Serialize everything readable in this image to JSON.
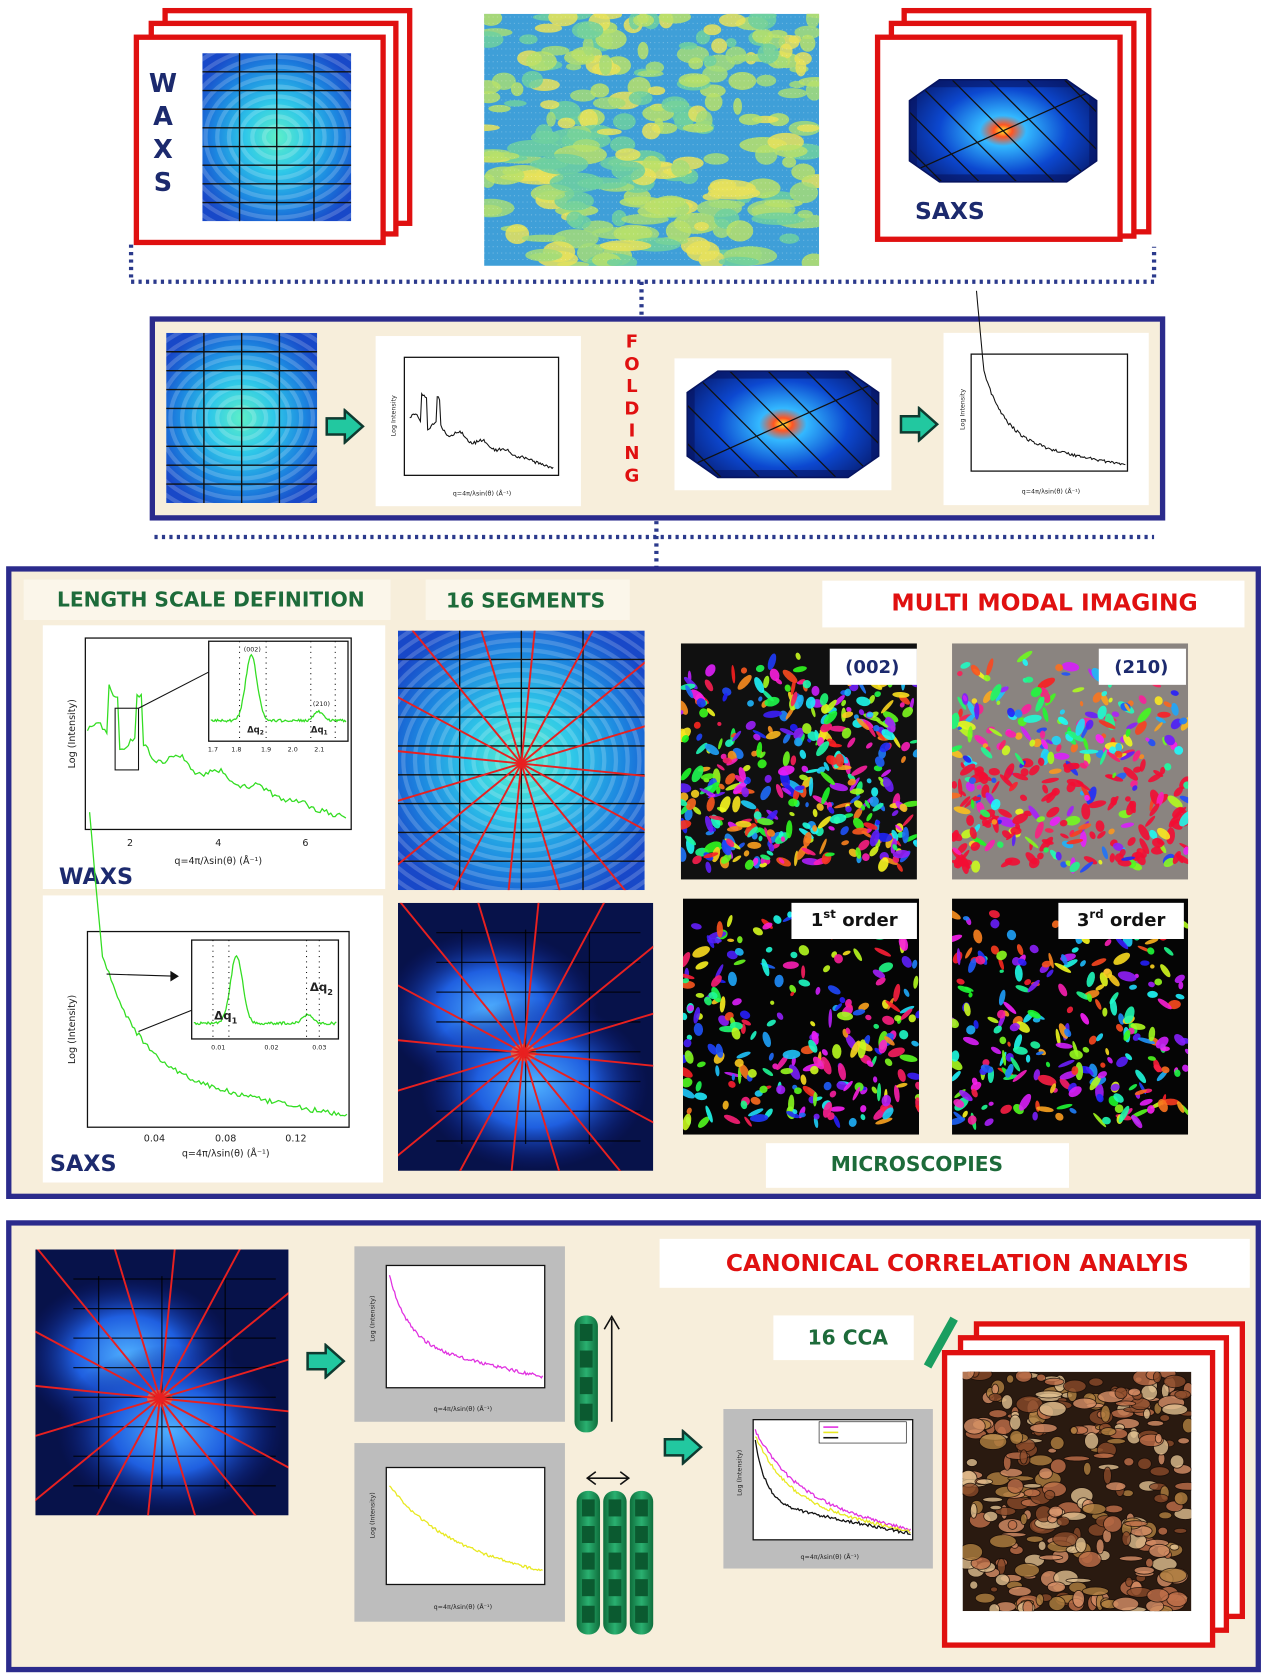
{
  "top": {
    "waxs_label": "WAXS",
    "saxs_label": "SAXS"
  },
  "folding": {
    "label": "FOLDING",
    "plot_ylabel": "Log Intensity",
    "plot_xlabel": "q=4π/λsin(θ) (Å⁻¹)"
  },
  "analysis": {
    "length_scale_title": "LENGTH SCALE DEFINITION",
    "segments_title": "16 SEGMENTS",
    "multimodal_title": "MULTI MODAL IMAGING",
    "waxs_plot": {
      "label": "WAXS",
      "ylabel": "Log (Intensity)",
      "xlabel": "q=4π/λsin(θ) (Å⁻¹)",
      "xticks": [
        "2",
        "4",
        "6"
      ],
      "inset_xticks": [
        "1.7",
        "1.8",
        "1.9",
        "2.0",
        "2.1"
      ],
      "peaks": [
        "(002)",
        "(210)"
      ],
      "deltas": [
        {
          "base": "Δq",
          "sub": "2"
        },
        {
          "base": "Δq",
          "sub": "1"
        }
      ]
    },
    "saxs_plot": {
      "label": "SAXS",
      "ylabel": "Log (Intensity)",
      "xlabel": "q=4π/λsin(θ) (Å⁻¹)",
      "xticks": [
        "0.04",
        "0.08",
        "0.12"
      ],
      "inset_xticks": [
        "0.01",
        "0.02",
        "0.03"
      ],
      "deltas": [
        {
          "base": "Δq",
          "sub": "1"
        },
        {
          "base": "Δq",
          "sub": "2"
        }
      ]
    },
    "maps": [
      {
        "label": "(002)"
      },
      {
        "label": "(210)"
      },
      {
        "ordinal": "1",
        "suffix": "st",
        "text": "order"
      },
      {
        "ordinal": "3",
        "suffix": "rd",
        "text": "order"
      }
    ],
    "microscopies_label": "MICROSCOPIES"
  },
  "cca": {
    "title": "CANONICAL CORRELATION ANALYIS",
    "count_label": "16 CCA",
    "plot_ylabel": "Log (Intensity)",
    "plot_xlabel": "q=4π/λsin(θ) (Å⁻¹)"
  }
}
